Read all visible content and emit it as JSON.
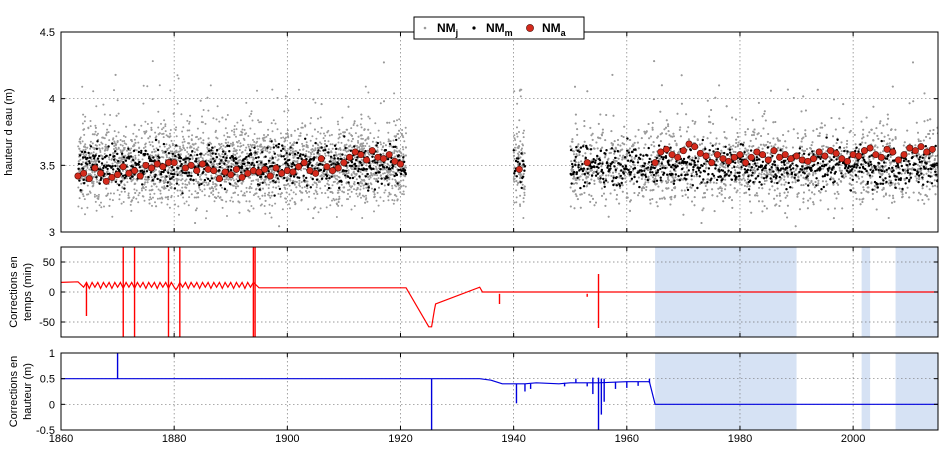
{
  "colors": {
    "daily": "#9a9a9a",
    "monthly": "#000000",
    "annual_fill": "#d42a1c",
    "time_corr": "#ff0000",
    "height_corr": "#0000dd",
    "shade": "#d6e2f4",
    "grid": "#7a7a7a"
  },
  "legend": {
    "daily": {
      "main": "NM",
      "sub": "j"
    },
    "monthly": {
      "main": "NM",
      "sub": "m"
    },
    "annual": {
      "main": "NM",
      "sub": "a"
    },
    "placement": "top-center"
  },
  "chart_data": [
    {
      "type": "scatter",
      "ylabel": "hauteur d eau (m)",
      "xlim": [
        1860,
        2015
      ],
      "ylim": [
        3,
        4.5
      ],
      "yticks": [
        "3",
        "3.5",
        "4",
        "4.5"
      ],
      "grid": true,
      "data_periods": [
        [
          1863,
          1921
        ],
        [
          1940,
          1942
        ],
        [
          1950,
          2015
        ]
      ],
      "series": [
        {
          "name": "NMj",
          "marker": "dot",
          "mean": 3.5,
          "spread": 0.15
        },
        {
          "name": "NMm",
          "marker": "dot"
        },
        {
          "name": "NMa",
          "marker": "circle",
          "x": [
            1863,
            1864,
            1865,
            1866,
            1867,
            1868,
            1869,
            1870,
            1871,
            1872,
            1873,
            1874,
            1875,
            1876,
            1877,
            1878,
            1879,
            1880,
            1882,
            1883,
            1884,
            1885,
            1886,
            1887,
            1888,
            1889,
            1890,
            1891,
            1892,
            1893,
            1894,
            1895,
            1896,
            1897,
            1898,
            1899,
            1900,
            1901,
            1902,
            1903,
            1904,
            1905,
            1906,
            1907,
            1908,
            1909,
            1910,
            1911,
            1912,
            1913,
            1914,
            1915,
            1916,
            1917,
            1918,
            1919,
            1920,
            1941,
            1953,
            1965,
            1966,
            1967,
            1968,
            1969,
            1970,
            1971,
            1972,
            1973,
            1974,
            1975,
            1976,
            1977,
            1978,
            1979,
            1980,
            1981,
            1982,
            1983,
            1984,
            1985,
            1986,
            1987,
            1988,
            1989,
            1990,
            1991,
            1992,
            1993,
            1994,
            1995,
            1996,
            1997,
            1998,
            1999,
            2000,
            2001,
            2002,
            2003,
            2004,
            2005,
            2006,
            2007,
            2008,
            2009,
            2010,
            2011,
            2012,
            2013,
            2014
          ],
          "y": [
            3.42,
            3.44,
            3.4,
            3.48,
            3.44,
            3.38,
            3.41,
            3.43,
            3.49,
            3.44,
            3.46,
            3.42,
            3.5,
            3.48,
            3.51,
            3.49,
            3.52,
            3.52,
            3.48,
            3.5,
            3.46,
            3.51,
            3.47,
            3.46,
            3.4,
            3.45,
            3.43,
            3.47,
            3.41,
            3.44,
            3.46,
            3.45,
            3.47,
            3.42,
            3.48,
            3.44,
            3.46,
            3.45,
            3.49,
            3.52,
            3.46,
            3.44,
            3.55,
            3.49,
            3.46,
            3.48,
            3.52,
            3.56,
            3.6,
            3.58,
            3.54,
            3.61,
            3.56,
            3.55,
            3.58,
            3.53,
            3.51,
            3.47,
            3.52,
            3.52,
            3.6,
            3.62,
            3.58,
            3.56,
            3.61,
            3.66,
            3.64,
            3.59,
            3.57,
            3.52,
            3.58,
            3.55,
            3.53,
            3.56,
            3.58,
            3.52,
            3.56,
            3.6,
            3.58,
            3.54,
            3.61,
            3.56,
            3.58,
            3.55,
            3.57,
            3.54,
            3.53,
            3.55,
            3.6,
            3.57,
            3.61,
            3.59,
            3.55,
            3.53,
            3.58,
            3.57,
            3.61,
            3.63,
            3.58,
            3.56,
            3.62,
            3.6,
            3.54,
            3.58,
            3.63,
            3.61,
            3.64,
            3.6,
            3.62
          ]
        }
      ]
    },
    {
      "type": "line",
      "ylabel": "Corrections en temps (min)",
      "xlim": [
        1860,
        2015
      ],
      "ylim": [
        -75,
        75
      ],
      "yticks": [
        "-50",
        "0",
        "50"
      ],
      "grid": true,
      "shaded_x_ranges": [
        [
          1965,
          1990
        ],
        [
          2001.5,
          2003
        ],
        [
          2007.5,
          2015
        ]
      ],
      "series": [
        {
          "name": "time_correction",
          "x": [
            1860,
            1863,
            1864,
            1864.5,
            1865,
            1865.5,
            1866,
            1866.5,
            1867,
            1867.5,
            1868,
            1868.5,
            1869,
            1869.5,
            1870,
            1870.5,
            1871,
            1871.5,
            1872,
            1872.5,
            1873,
            1873.5,
            1874,
            1874.5,
            1875,
            1875.5,
            1876,
            1876.5,
            1877,
            1877.5,
            1878,
            1878.5,
            1879,
            1879.5,
            1880,
            1880.3,
            1880.6,
            1881,
            1881.5,
            1882,
            1882.5,
            1883,
            1883.5,
            1884,
            1884.5,
            1885,
            1885.5,
            1886,
            1886.5,
            1887,
            1887.5,
            1888,
            1888.5,
            1889,
            1889.5,
            1890,
            1890.5,
            1891,
            1891.5,
            1892,
            1892.5,
            1893,
            1893.5,
            1894,
            1895,
            1920,
            1921,
            1925,
            1925.5,
            1926,
            1926.2,
            1934,
            1934.5,
            1935,
            1937,
            1950,
            1965,
            2015
          ],
          "y": [
            16,
            17,
            8,
            16,
            6,
            16,
            8,
            16,
            6,
            16,
            8,
            16,
            6,
            16,
            8,
            16,
            6,
            16,
            8,
            16,
            6,
            16,
            8,
            16,
            6,
            16,
            8,
            16,
            6,
            16,
            8,
            16,
            6,
            16,
            8,
            4,
            8,
            16,
            8,
            16,
            6,
            16,
            8,
            16,
            6,
            16,
            8,
            16,
            6,
            16,
            8,
            16,
            6,
            16,
            8,
            16,
            6,
            16,
            8,
            16,
            6,
            16,
            8,
            16,
            7,
            7,
            7,
            -58,
            -58,
            -30,
            -20,
            8,
            0,
            0,
            0,
            0,
            0,
            0
          ]
        },
        {
          "name": "time_spikes",
          "segments": [
            [
              1864.5,
              16,
              1864.5,
              -40
            ],
            [
              1871,
              78,
              1871,
              -75
            ],
            [
              1873,
              78,
              1873,
              -75
            ],
            [
              1879,
              78,
              1879,
              -75
            ],
            [
              1881,
              78,
              1881,
              -75
            ],
            [
              1894,
              78,
              1894,
              -75
            ],
            [
              1894.3,
              78,
              1894.3,
              -75
            ],
            [
              1937.5,
              -3,
              1937.5,
              -20
            ],
            [
              1953,
              -3,
              1953,
              -8
            ],
            [
              1955,
              30,
              1955,
              -60
            ]
          ]
        }
      ]
    },
    {
      "type": "line",
      "ylabel": "Corrections en hauteur (m)",
      "xlim": [
        1860,
        2015
      ],
      "ylim": [
        -0.5,
        1
      ],
      "yticks": [
        "-0.5",
        "0",
        "0.5",
        "1"
      ],
      "xticks": [
        "1860",
        "1880",
        "1900",
        "1920",
        "1940",
        "1960",
        "1980",
        "2000"
      ],
      "grid": true,
      "shaded_x_ranges": [
        [
          1965,
          1990
        ],
        [
          2001.5,
          2003
        ],
        [
          2007.5,
          2015
        ]
      ],
      "series": [
        {
          "name": "height_correction",
          "x": [
            1860,
            1934,
            1936,
            1938,
            1942,
            1944,
            1948,
            1950,
            1955,
            1960,
            1964,
            1965,
            2015
          ],
          "y": [
            0.5,
            0.5,
            0.47,
            0.4,
            0.4,
            0.42,
            0.4,
            0.42,
            0.42,
            0.44,
            0.44,
            0.0,
            0.0
          ]
        },
        {
          "name": "height_spikes",
          "segments": [
            [
              1870,
              0.5,
              1870,
              1
            ],
            [
              1925.5,
              0.5,
              1925.5,
              -0.5
            ],
            [
              1940.5,
              0.4,
              1940.5,
              0.02
            ],
            [
              1942,
              0.4,
              1942,
              0.25
            ],
            [
              1943,
              0.4,
              1943,
              0.3
            ],
            [
              1949,
              0.42,
              1949,
              0.35
            ],
            [
              1951,
              0.42,
              1951,
              0.5
            ],
            [
              1953,
              0.42,
              1953,
              0.35
            ],
            [
              1954,
              0.52,
              1954,
              0.2
            ],
            [
              1955,
              0.52,
              1955,
              -0.5
            ],
            [
              1955.5,
              0.5,
              1955.5,
              -0.2
            ],
            [
              1956,
              0.5,
              1956,
              0.05
            ],
            [
              1958,
              0.44,
              1958,
              0.3
            ],
            [
              1960,
              0.44,
              1960,
              0.32
            ],
            [
              1962,
              0.44,
              1962,
              0.36
            ],
            [
              1964,
              0.5,
              1964,
              0.42
            ]
          ]
        }
      ]
    }
  ]
}
